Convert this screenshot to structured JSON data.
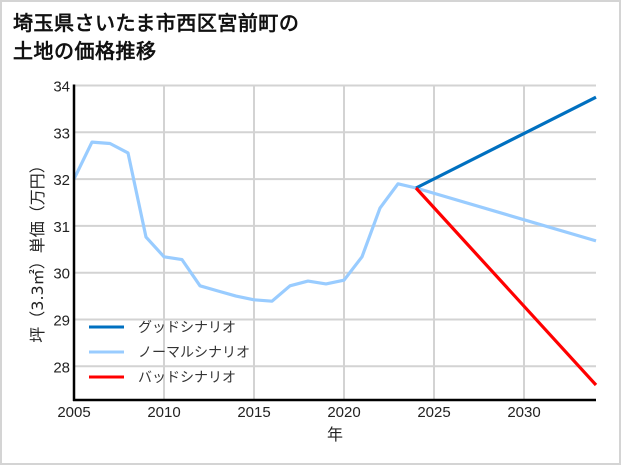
{
  "title": {
    "line1": "埼玉県さいたま市西区宮前町の",
    "line2": "土地の価格推移"
  },
  "chart_data": {
    "type": "line",
    "title": "埼玉県さいたま市西区宮前町の土地の価格推移",
    "xlabel": "年",
    "ylabel": "坪（3.3㎡）単価（万円）",
    "xlim": [
      2005,
      2034
    ],
    "ylim": [
      27.3,
      34
    ],
    "x_ticks": [
      2005,
      2010,
      2015,
      2020,
      2025,
      2030
    ],
    "y_ticks": [
      28,
      29,
      30,
      31,
      32,
      33,
      34
    ],
    "grid": true,
    "legend_position": "lower left",
    "series": [
      {
        "name": "グッドシナリオ",
        "color": "#0070c0",
        "x": [
          2024,
          2034
        ],
        "values": [
          31.81,
          33.75
        ]
      },
      {
        "name": "ノーマルシナリオ",
        "color": "#99ccff",
        "x": [
          2005,
          2006,
          2007,
          2008,
          2009,
          2010,
          2011,
          2012,
          2013,
          2014,
          2015,
          2016,
          2017,
          2018,
          2019,
          2020,
          2021,
          2022,
          2023,
          2024,
          2034
        ],
        "values": [
          32.0,
          32.79,
          32.76,
          32.56,
          30.76,
          30.34,
          30.28,
          29.72,
          29.61,
          29.5,
          29.42,
          29.39,
          29.72,
          29.82,
          29.76,
          29.84,
          30.34,
          31.38,
          31.9,
          31.81,
          30.68
        ]
      },
      {
        "name": "バッドシナリオ",
        "color": "#ff0000",
        "x": [
          2024,
          2034
        ],
        "values": [
          31.81,
          27.6
        ]
      }
    ]
  }
}
